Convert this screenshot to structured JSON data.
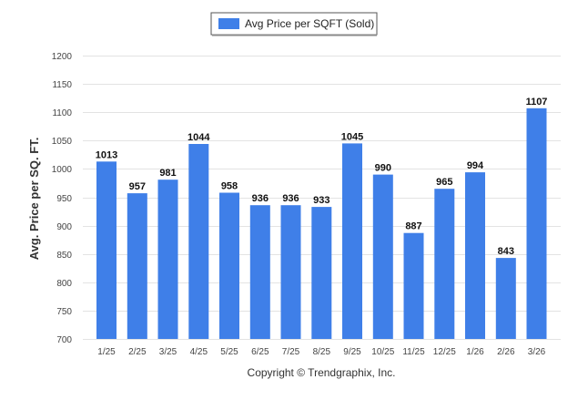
{
  "chart_data": {
    "type": "bar",
    "title": "",
    "legend": {
      "label": "Avg Price per SQFT (Sold)",
      "placement": "top-center"
    },
    "xlabel": "",
    "ylabel": "Avg. Price per SQ. FT.",
    "ylim": [
      700,
      1200
    ],
    "yticks": [
      700,
      750,
      800,
      850,
      900,
      950,
      1000,
      1050,
      1100,
      1150,
      1200
    ],
    "grid": true,
    "categories": [
      "1/25",
      "2/25",
      "3/25",
      "4/25",
      "5/25",
      "6/25",
      "7/25",
      "8/25",
      "9/25",
      "10/25",
      "11/25",
      "12/25",
      "1/26",
      "2/26",
      "3/26"
    ],
    "series": [
      {
        "name": "Avg Price per SQFT (Sold)",
        "color": "#3f7fe8",
        "values": [
          1013,
          957,
          981,
          1044,
          958,
          936,
          936,
          933,
          1045,
          990,
          887,
          965,
          994,
          843,
          1107
        ]
      }
    ],
    "credit": "Copyright © Trendgraphix, Inc."
  }
}
